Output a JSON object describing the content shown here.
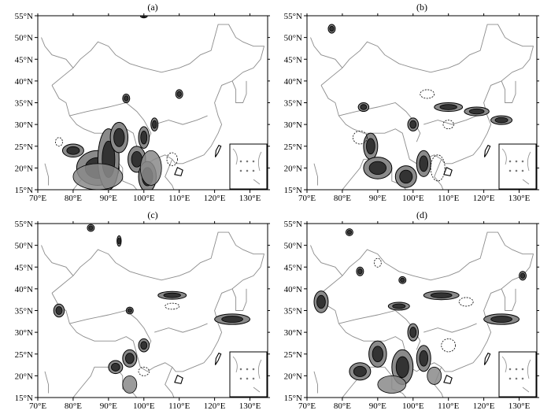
{
  "figure": {
    "lon_ticks": [
      70,
      80,
      90,
      100,
      110,
      120,
      130
    ],
    "lat_ticks": [
      15,
      20,
      25,
      30,
      35,
      40,
      45,
      50,
      55
    ],
    "lon_range": [
      70,
      135
    ],
    "lat_range": [
      15,
      55
    ],
    "panels": [
      {
        "label": "(a)",
        "features": [
          {
            "lon": 87,
            "lat": 20,
            "rx": 6,
            "ry": 4,
            "tone": "dark"
          },
          {
            "lon": 90,
            "lat": 22,
            "rx": 3,
            "ry": 7,
            "tone": "dark"
          },
          {
            "lon": 93,
            "lat": 27,
            "rx": 2.5,
            "ry": 3.5,
            "tone": "dark"
          },
          {
            "lon": 98,
            "lat": 22,
            "rx": 2.5,
            "ry": 3,
            "tone": "dark"
          },
          {
            "lon": 101,
            "lat": 18,
            "rx": 2.5,
            "ry": 3.5,
            "tone": "dark"
          },
          {
            "lon": 100,
            "lat": 27,
            "rx": 1.5,
            "ry": 2.5,
            "tone": "dark"
          },
          {
            "lon": 103,
            "lat": 30,
            "rx": 1,
            "ry": 1.5,
            "tone": "dark"
          },
          {
            "lon": 110,
            "lat": 37,
            "rx": 1,
            "ry": 1,
            "tone": "dark"
          },
          {
            "lon": 95,
            "lat": 36,
            "rx": 1,
            "ry": 1,
            "tone": "dark"
          },
          {
            "lon": 80,
            "lat": 24,
            "rx": 3,
            "ry": 1.5,
            "tone": "dark"
          },
          {
            "lon": 87,
            "lat": 18,
            "rx": 7,
            "ry": 3,
            "tone": "light"
          },
          {
            "lon": 102,
            "lat": 20,
            "rx": 3,
            "ry": 4,
            "tone": "light"
          },
          {
            "lon": 108,
            "lat": 22,
            "rx": 1.5,
            "ry": 1.5,
            "tone": "outline"
          },
          {
            "lon": 76,
            "lat": 26,
            "rx": 1,
            "ry": 1,
            "tone": "outline"
          },
          {
            "lon": 100,
            "lat": 55,
            "rx": 1,
            "ry": 0.5,
            "tone": "dark"
          }
        ]
      },
      {
        "label": "(b)",
        "features": [
          {
            "lon": 88,
            "lat": 25,
            "rx": 2,
            "ry": 3,
            "tone": "dark"
          },
          {
            "lon": 90,
            "lat": 20,
            "rx": 4,
            "ry": 2.5,
            "tone": "dark"
          },
          {
            "lon": 98,
            "lat": 18,
            "rx": 3,
            "ry": 2.5,
            "tone": "dark"
          },
          {
            "lon": 103,
            "lat": 21,
            "rx": 2,
            "ry": 3,
            "tone": "dark"
          },
          {
            "lon": 100,
            "lat": 30,
            "rx": 1.5,
            "ry": 1.5,
            "tone": "dark"
          },
          {
            "lon": 110,
            "lat": 34,
            "rx": 4,
            "ry": 1,
            "tone": "dark"
          },
          {
            "lon": 118,
            "lat": 33,
            "rx": 3.5,
            "ry": 1,
            "tone": "dark"
          },
          {
            "lon": 125,
            "lat": 31,
            "rx": 3,
            "ry": 1,
            "tone": "dark"
          },
          {
            "lon": 86,
            "lat": 34,
            "rx": 1.5,
            "ry": 1,
            "tone": "dark"
          },
          {
            "lon": 77,
            "lat": 52,
            "rx": 1,
            "ry": 1,
            "tone": "dark"
          },
          {
            "lon": 107,
            "lat": 20,
            "rx": 2,
            "ry": 3,
            "tone": "outline"
          },
          {
            "lon": 85,
            "lat": 27,
            "rx": 2,
            "ry": 1.5,
            "tone": "outline"
          },
          {
            "lon": 104,
            "lat": 37,
            "rx": 2,
            "ry": 1,
            "tone": "outline"
          },
          {
            "lon": 110,
            "lat": 30,
            "rx": 1.5,
            "ry": 1,
            "tone": "outline"
          }
        ]
      },
      {
        "label": "(c)",
        "features": [
          {
            "lon": 76,
            "lat": 35,
            "rx": 1.5,
            "ry": 1.5,
            "tone": "dark"
          },
          {
            "lon": 108,
            "lat": 38.5,
            "rx": 4,
            "ry": 0.9,
            "tone": "dark"
          },
          {
            "lon": 125,
            "lat": 33,
            "rx": 5,
            "ry": 1.2,
            "tone": "dark"
          },
          {
            "lon": 96,
            "lat": 35,
            "rx": 1,
            "ry": 0.8,
            "tone": "dark"
          },
          {
            "lon": 96,
            "lat": 24,
            "rx": 2,
            "ry": 2,
            "tone": "dark"
          },
          {
            "lon": 100,
            "lat": 27,
            "rx": 1.5,
            "ry": 1.5,
            "tone": "dark"
          },
          {
            "lon": 92,
            "lat": 22,
            "rx": 2,
            "ry": 1.5,
            "tone": "dark"
          },
          {
            "lon": 96,
            "lat": 18,
            "rx": 2,
            "ry": 2,
            "tone": "light"
          },
          {
            "lon": 85,
            "lat": 54,
            "rx": 1,
            "ry": 0.8,
            "tone": "dark"
          },
          {
            "lon": 93,
            "lat": 51,
            "rx": 0.6,
            "ry": 1.2,
            "tone": "dark"
          },
          {
            "lon": 100,
            "lat": 21,
            "rx": 1.5,
            "ry": 1,
            "tone": "outline"
          },
          {
            "lon": 108,
            "lat": 36,
            "rx": 2,
            "ry": 0.7,
            "tone": "outline"
          }
        ]
      },
      {
        "label": "(d)",
        "features": [
          {
            "lon": 74,
            "lat": 37,
            "rx": 2,
            "ry": 2.5,
            "tone": "dark"
          },
          {
            "lon": 108,
            "lat": 38.5,
            "rx": 5,
            "ry": 1,
            "tone": "dark"
          },
          {
            "lon": 125,
            "lat": 33,
            "rx": 5,
            "ry": 1.2,
            "tone": "dark"
          },
          {
            "lon": 96,
            "lat": 36,
            "rx": 3,
            "ry": 0.9,
            "tone": "dark"
          },
          {
            "lon": 90,
            "lat": 25,
            "rx": 2.5,
            "ry": 3,
            "tone": "dark"
          },
          {
            "lon": 97,
            "lat": 22,
            "rx": 3,
            "ry": 4,
            "tone": "dark"
          },
          {
            "lon": 103,
            "lat": 24,
            "rx": 2,
            "ry": 3,
            "tone": "dark"
          },
          {
            "lon": 85,
            "lat": 21,
            "rx": 3,
            "ry": 2,
            "tone": "dark"
          },
          {
            "lon": 100,
            "lat": 30,
            "rx": 1.5,
            "ry": 2,
            "tone": "dark"
          },
          {
            "lon": 131,
            "lat": 43,
            "rx": 1,
            "ry": 1,
            "tone": "dark"
          },
          {
            "lon": 85,
            "lat": 44,
            "rx": 1,
            "ry": 1,
            "tone": "dark"
          },
          {
            "lon": 97,
            "lat": 42,
            "rx": 1,
            "ry": 0.8,
            "tone": "dark"
          },
          {
            "lon": 94,
            "lat": 18,
            "rx": 4,
            "ry": 2,
            "tone": "light"
          },
          {
            "lon": 106,
            "lat": 20,
            "rx": 2,
            "ry": 2,
            "tone": "light"
          },
          {
            "lon": 110,
            "lat": 27,
            "rx": 2,
            "ry": 1.5,
            "tone": "outline"
          },
          {
            "lon": 115,
            "lat": 37,
            "rx": 2,
            "ry": 1,
            "tone": "outline"
          },
          {
            "lon": 82,
            "lat": 53,
            "rx": 1,
            "ry": 0.8,
            "tone": "dark"
          },
          {
            "lon": 90,
            "lat": 46,
            "rx": 1,
            "ry": 1,
            "tone": "outline"
          }
        ]
      }
    ],
    "colors": {
      "frame": "#000000",
      "border": "#8c8c8c",
      "dark_fill": "#333333",
      "light_fill": "#8a8a8a",
      "outline": "#000000"
    }
  }
}
